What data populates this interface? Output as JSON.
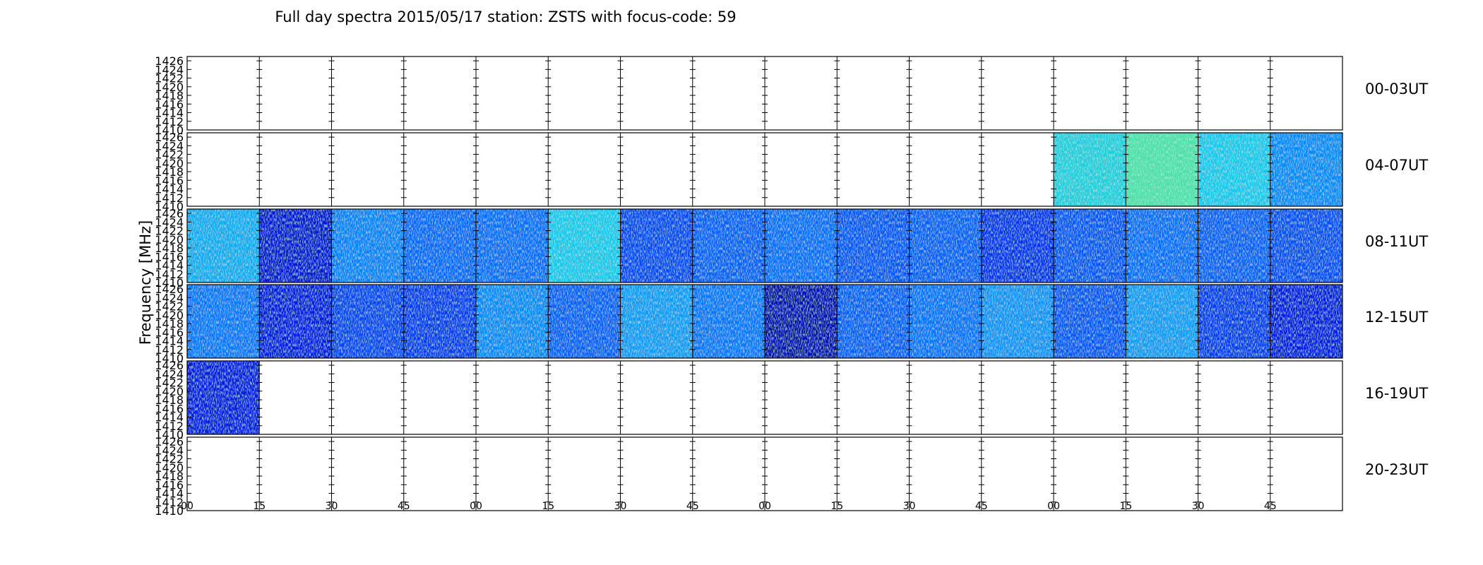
{
  "chart_data": {
    "type": "heatmap",
    "title": "Full day spectra 2015/05/17 station: ZSTS with focus-code: 59",
    "ylabel": "Frequency [MHz]",
    "yticks": [
      "1410",
      "1412",
      "1414",
      "1416",
      "1418",
      "1420",
      "1422",
      "1424",
      "1426"
    ],
    "ylim": [
      1410,
      1427
    ],
    "xticks": [
      "00",
      "15",
      "30",
      "45",
      "00",
      "15",
      "30",
      "45",
      "00",
      "15",
      "30",
      "45",
      "00",
      "15",
      "30",
      "45"
    ],
    "rows": [
      {
        "label": "00-03UT",
        "blocks": [
          null,
          null,
          null,
          null,
          null,
          null,
          null,
          null,
          null,
          null,
          null,
          null,
          null,
          null,
          null,
          null
        ]
      },
      {
        "label": "04-07UT",
        "blocks": [
          null,
          null,
          null,
          null,
          null,
          null,
          null,
          null,
          null,
          null,
          null,
          null,
          0.58,
          0.68,
          0.55,
          0.4
        ]
      },
      {
        "label": "08-11UT",
        "blocks": [
          0.48,
          0.12,
          0.38,
          0.32,
          0.33,
          0.55,
          0.25,
          0.3,
          0.33,
          0.28,
          0.3,
          0.2,
          0.28,
          0.33,
          0.3,
          0.26
        ]
      },
      {
        "label": "12-15UT",
        "blocks": [
          0.35,
          0.14,
          0.24,
          0.22,
          0.4,
          0.3,
          0.44,
          0.35,
          0.06,
          0.3,
          0.34,
          0.42,
          0.28,
          0.44,
          0.22,
          0.14
        ]
      },
      {
        "label": "16-19UT",
        "blocks": [
          0.14,
          null,
          null,
          null,
          null,
          null,
          null,
          null,
          null,
          null,
          null,
          null,
          null,
          null,
          null,
          null
        ]
      },
      {
        "label": "20-23UT",
        "blocks": [
          null,
          null,
          null,
          null,
          null,
          null,
          null,
          null,
          null,
          null,
          null,
          null,
          null,
          null,
          null,
          null
        ]
      }
    ]
  }
}
